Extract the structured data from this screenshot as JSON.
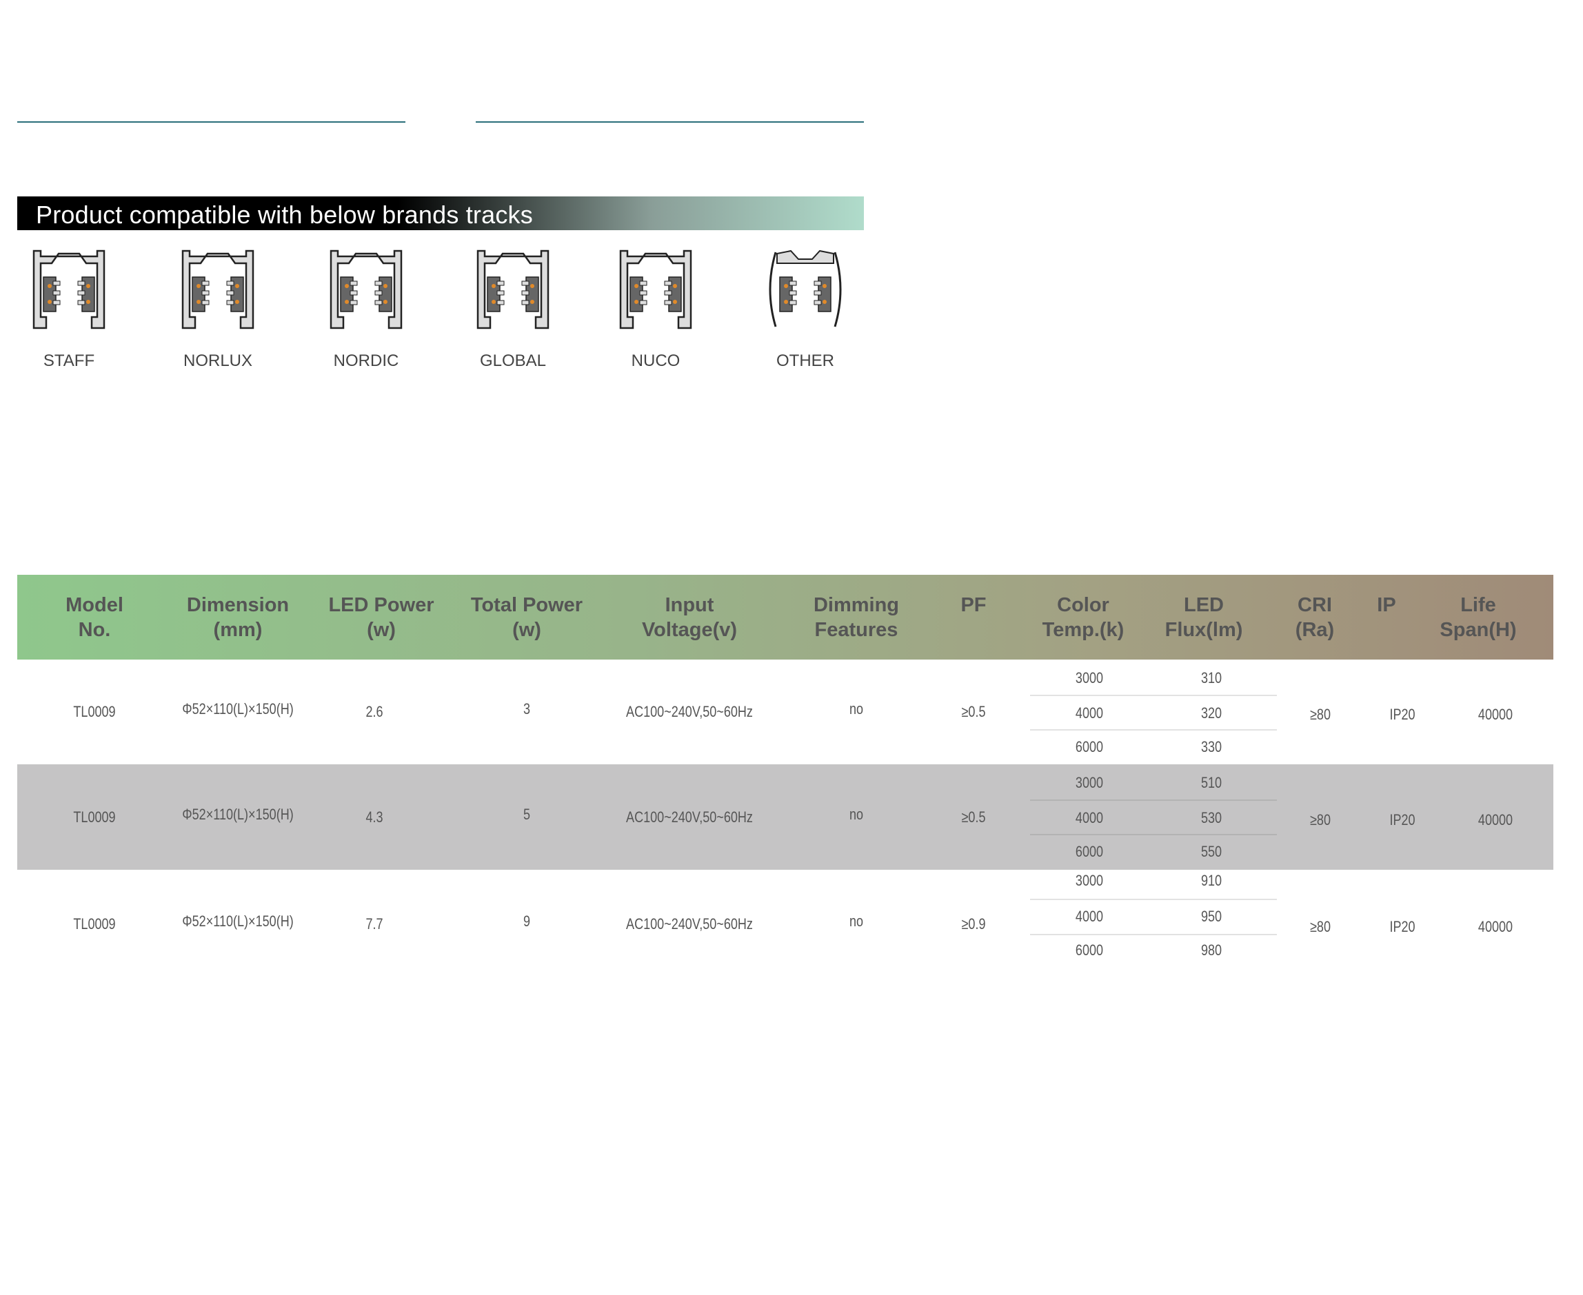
{
  "banner": {
    "title": "Product compatible with below brands tracks"
  },
  "brands": [
    {
      "label": "STAFF",
      "icon": "staff-track-profile-icon"
    },
    {
      "label": "NORLUX",
      "icon": "norlux-track-profile-icon"
    },
    {
      "label": "NORDIC",
      "icon": "nordic-track-profile-icon"
    },
    {
      "label": "GLOBAL",
      "icon": "global-track-profile-icon"
    },
    {
      "label": "NUCO",
      "icon": "nuco-track-profile-icon"
    },
    {
      "label": "OTHER",
      "icon": "other-track-profile-icon"
    }
  ],
  "table": {
    "headers": [
      [
        "Model",
        "No."
      ],
      [
        "Dimension",
        "(mm)"
      ],
      [
        "LED Power",
        "(w)"
      ],
      [
        "Total Power",
        "(w)"
      ],
      [
        "Input",
        "Voltage(v)"
      ],
      [
        "Dimming",
        "Features"
      ],
      [
        "PF",
        ""
      ],
      [
        "Color",
        "Temp.(k)"
      ],
      [
        "LED",
        "Flux(lm)"
      ],
      [
        "CRI",
        "(Ra)"
      ],
      [
        "IP",
        ""
      ],
      [
        "Life",
        "Span(H)"
      ]
    ],
    "rows": [
      {
        "model": "TL0009",
        "dimension": "Φ52×110(L)×150(H)",
        "led_power": "2.6",
        "total_power": "3",
        "voltage": "AC100~240V,50~60Hz",
        "dimming": "no",
        "pf": "≥0.5",
        "temps": [
          "3000",
          "4000",
          "6000"
        ],
        "flux": [
          "310",
          "320",
          "330"
        ],
        "cri": "≥80",
        "ip": "IP20",
        "life": "40000"
      },
      {
        "model": "TL0009",
        "dimension": "Φ52×110(L)×150(H)",
        "led_power": "4.3",
        "total_power": "5",
        "voltage": "AC100~240V,50~60Hz",
        "dimming": "no",
        "pf": "≥0.5",
        "temps": [
          "3000",
          "4000",
          "6000"
        ],
        "flux": [
          "510",
          "530",
          "550"
        ],
        "cri": "≥80",
        "ip": "IP20",
        "life": "40000"
      },
      {
        "model": "TL0009",
        "dimension": "Φ52×110(L)×150(H)",
        "led_power": "7.7",
        "total_power": "9",
        "voltage": "AC100~240V,50~60Hz",
        "dimming": "no",
        "pf": "≥0.9",
        "temps": [
          "3000",
          "4000",
          "6000"
        ],
        "flux": [
          "910",
          "950",
          "980"
        ],
        "cri": "≥80",
        "ip": "IP20",
        "life": "40000"
      }
    ]
  },
  "colors": {
    "rule": "#2a6f7a",
    "row_alt": "#c5c4c5",
    "contact": "#e08a2a"
  }
}
